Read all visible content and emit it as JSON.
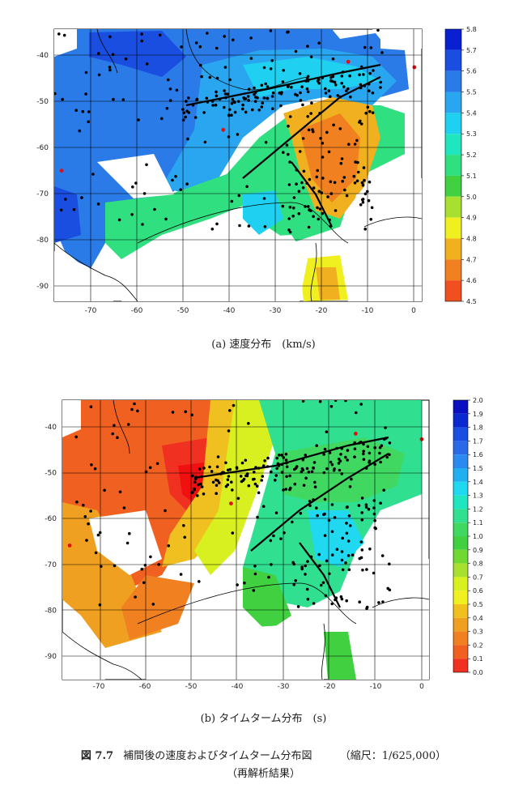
{
  "panels": [
    {
      "id": "a",
      "caption": "(a)  速度分布　(km/s)",
      "x_ticks": [
        -70,
        -60,
        -50,
        -40,
        -30,
        -20,
        -10,
        0
      ],
      "y_ticks": [
        -40,
        -50,
        -60,
        -70,
        -80,
        -90
      ],
      "colorbar": {
        "labels": [
          "5.8",
          "5.7",
          "5.6",
          "5.5",
          "5.4",
          "5.3",
          "5.2",
          "5.1",
          "5.0",
          "4.9",
          "4.8",
          "4.7",
          "4.6",
          "4.5"
        ],
        "colors": [
          "#0a1fd0",
          "#1a4ee0",
          "#2a7ae8",
          "#2aa6f0",
          "#20d0f0",
          "#20e6c0",
          "#30e080",
          "#40d040",
          "#a8e030",
          "#f0f020",
          "#f0b020",
          "#f08020",
          "#f05020",
          "#f01010"
        ]
      }
    },
    {
      "id": "b",
      "caption": "(b)  タイムターム分布　(s)",
      "x_ticks": [
        -70,
        -60,
        -50,
        -40,
        -30,
        -20,
        -10,
        0
      ],
      "y_ticks": [
        -40,
        -50,
        -60,
        -70,
        -80,
        -90
      ],
      "colorbar": {
        "labels": [
          "2.0",
          "1.9",
          "1.8",
          "1.7",
          "1.6",
          "1.5",
          "1.4",
          "1.3",
          "1.2",
          "1.1",
          "1.0",
          "0.9",
          "0.8",
          "0.7",
          "0.6",
          "0.5",
          "0.4",
          "0.3",
          "0.2",
          "0.1",
          "0.0"
        ],
        "colors": [
          "#0a10c0",
          "#0a2ad0",
          "#1a4ee0",
          "#2a6ae8",
          "#2a8af0",
          "#20b0f0",
          "#20d8f0",
          "#20e6c0",
          "#30e090",
          "#40d860",
          "#40d040",
          "#70d830",
          "#a8e030",
          "#d8f020",
          "#f0f020",
          "#f0c020",
          "#f0a020",
          "#f08020",
          "#f06020",
          "#f03020",
          "#f01010"
        ]
      }
    }
  ],
  "figure_caption": {
    "number": "図 7.7",
    "text": "補間後の速度およびタイムターム分布図",
    "scale": "（縮尺：1/625,000）",
    "note": "（再解析結果）"
  }
}
